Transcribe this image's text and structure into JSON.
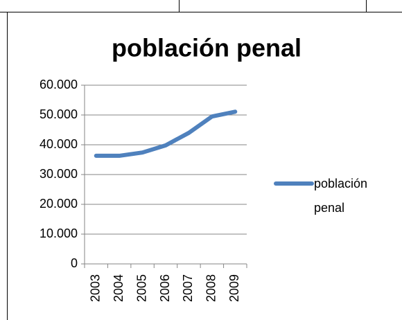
{
  "chart_data": {
    "type": "line",
    "title": "población penal",
    "categories": [
      "2003",
      "2004",
      "2005",
      "2006",
      "2007",
      "2008",
      "2009"
    ],
    "series": [
      {
        "name": "población penal",
        "color": "#4f81bd",
        "values": [
          36300,
          36300,
          37400,
          39800,
          44000,
          49500,
          51100
        ]
      }
    ],
    "ylim": [
      0,
      60000
    ],
    "yticks": [
      0,
      {
        "value": 10000,
        "label": "10.000"
      },
      {
        "value": 20000,
        "label": "20.000"
      },
      {
        "value": 30000,
        "label": "30.000"
      },
      {
        "value": 40000,
        "label": "40.000"
      },
      {
        "value": 50000,
        "label": "50.000"
      },
      {
        "value": 60000,
        "label": "60.000"
      }
    ],
    "grid": true,
    "legend": "right"
  }
}
